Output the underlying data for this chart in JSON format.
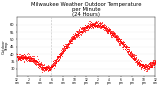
{
  "title": "Milwaukee Weather Outdoor Temperature\nper Minute\n(24 Hours)",
  "title_fontsize": 3.8,
  "line_color": "#ff0000",
  "background_color": "#ffffff",
  "ylim": [
    25,
    65
  ],
  "yticks": [
    30,
    35,
    40,
    45,
    50,
    55,
    60
  ],
  "ytick_fontsize": 2.5,
  "xtick_fontsize": 2.2,
  "marker_size": 0.3,
  "vline_x": 360,
  "vline_color": "#888888",
  "vline_style": "dotted",
  "noise_seed": 42,
  "xlim": [
    0,
    1440
  ],
  "hour_tick_step": 60,
  "ylabel": "Outdoor\nTemp",
  "ylabel_fontsize": 2.5
}
